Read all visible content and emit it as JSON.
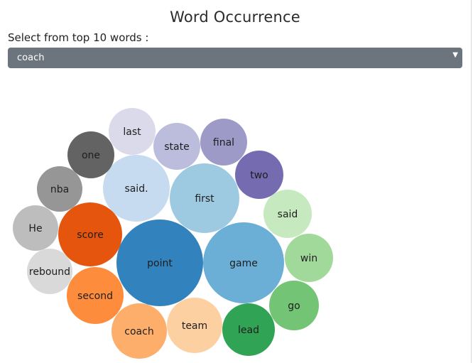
{
  "title": "Word Occurrence",
  "select": {
    "label": "Select from top 10 words :",
    "value": "coach"
  },
  "chart_data": {
    "type": "bubble",
    "title": "Word Occurrence",
    "items": [
      {
        "label": "point",
        "color": "#3182bd"
      },
      {
        "label": "game",
        "color": "#6baed6"
      },
      {
        "label": "first",
        "color": "#9ecae1"
      },
      {
        "label": "said.",
        "color": "#c6dbef"
      },
      {
        "label": "score",
        "color": "#e6550d"
      },
      {
        "label": "second",
        "color": "#fd8d3c"
      },
      {
        "label": "coach",
        "color": "#fdae6b"
      },
      {
        "label": "team",
        "color": "#fdd0a2"
      },
      {
        "label": "lead",
        "color": "#31a354"
      },
      {
        "label": "go",
        "color": "#74c476"
      },
      {
        "label": "win",
        "color": "#a1d99b"
      },
      {
        "label": "said",
        "color": "#c7e9c0"
      },
      {
        "label": "two",
        "color": "#756bb1"
      },
      {
        "label": "final",
        "color": "#9e9ac8"
      },
      {
        "label": "state",
        "color": "#bcbddc"
      },
      {
        "label": "last",
        "color": "#dadaeb"
      },
      {
        "label": "one",
        "color": "#636363"
      },
      {
        "label": "nba",
        "color": "#969696"
      },
      {
        "label": "He",
        "color": "#bdbdbd"
      },
      {
        "label": "rebound",
        "color": "#d9d9d9"
      }
    ]
  }
}
